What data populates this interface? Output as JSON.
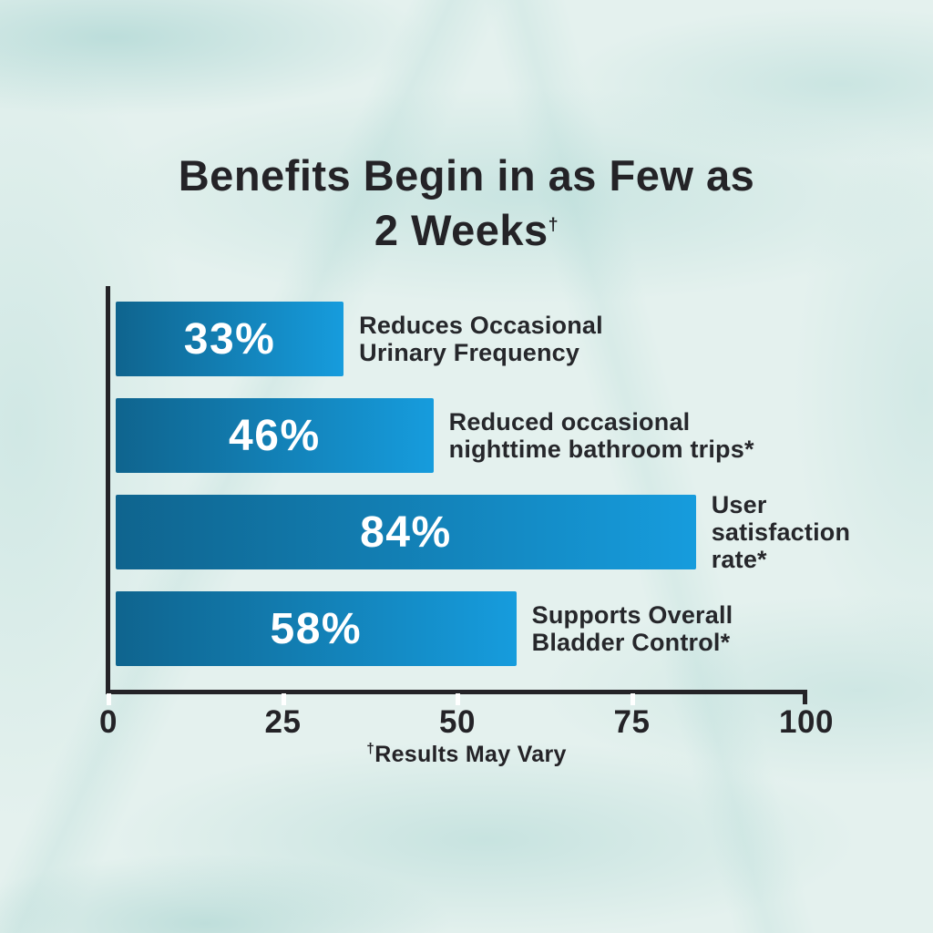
{
  "title": {
    "line1": "Benefits Begin in as Few as",
    "line2": "2 Weeks",
    "superscript": "†"
  },
  "chart_data": {
    "type": "bar",
    "orientation": "horizontal",
    "title": "Benefits Begin in as Few as 2 Weeks†",
    "categories": [
      "Reduces Occasional Urinary Frequency",
      "Reduced occasional nighttime bathroom trips*",
      "User satisfaction rate*",
      "Supports Overall Bladder Control*"
    ],
    "values": [
      33,
      46,
      84,
      58
    ],
    "value_labels": [
      "33%",
      "46%",
      "84%",
      "58%"
    ],
    "xlim": [
      0,
      100
    ],
    "xticks": [
      0,
      25,
      50,
      75,
      100
    ],
    "grid": false,
    "legend": "none",
    "footnote": "†Results May Vary",
    "bar_color_start": "#0f648e",
    "bar_color_end": "#169cdd",
    "value_label_color": "#ffffff",
    "text_color": "#242327",
    "background_color": "#e4f1ee"
  },
  "bars": [
    {
      "value": 33,
      "value_label": "33%",
      "desc": [
        "Reduces Occasional",
        "Urinary Frequency"
      ]
    },
    {
      "value": 46,
      "value_label": "46%",
      "desc": [
        "Reduced occasional",
        "nighttime bathroom trips*"
      ]
    },
    {
      "value": 84,
      "value_label": "84%",
      "desc": [
        "User",
        "satisfaction",
        "rate*"
      ]
    },
    {
      "value": 58,
      "value_label": "58%",
      "desc": [
        "Supports Overall",
        "Bladder Control*"
      ]
    }
  ],
  "axis": {
    "tick_labels": [
      "0",
      "25",
      "50",
      "75",
      "100"
    ],
    "tick_positions": [
      0,
      25,
      50,
      75,
      100
    ]
  },
  "footnote": {
    "dagger": "†",
    "text": "Results May Vary"
  }
}
